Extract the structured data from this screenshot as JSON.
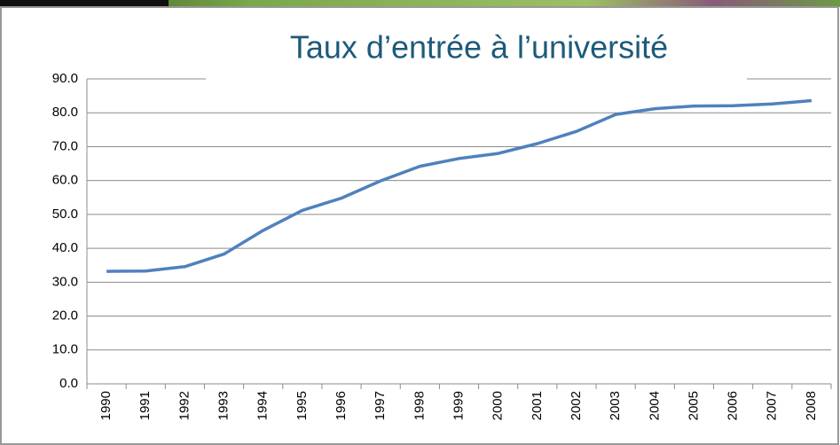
{
  "chart_data": {
    "type": "line",
    "title": "Taux d’entrée à l’université",
    "categories": [
      "1990",
      "1991",
      "1992",
      "1993",
      "1994",
      "1995",
      "1996",
      "1997",
      "1998",
      "1999",
      "2000",
      "2001",
      "2002",
      "2003",
      "2004",
      "2005",
      "2006",
      "2007",
      "2008"
    ],
    "series": [
      {
        "name": null,
        "color": "#4f81bd",
        "values": [
          33.2,
          33.3,
          34.6,
          38.3,
          45.3,
          51.2,
          54.8,
          59.9,
          64.2,
          66.5,
          68.0,
          70.9,
          74.5,
          79.5,
          81.2,
          82.0,
          82.1,
          82.6,
          83.6
        ]
      }
    ],
    "ylim": [
      0,
      90
    ],
    "yticks": [
      {
        "value": 0,
        "label": "0.0"
      },
      {
        "value": 10,
        "label": "10.0"
      },
      {
        "value": 20,
        "label": "20.0"
      },
      {
        "value": 30,
        "label": "30.0"
      },
      {
        "value": 40,
        "label": "40.0"
      },
      {
        "value": 50,
        "label": "50.0"
      },
      {
        "value": 60,
        "label": "60.0"
      },
      {
        "value": 70,
        "label": "70.0"
      },
      {
        "value": 80,
        "label": "80.0"
      },
      {
        "value": 90,
        "label": "90.0"
      }
    ],
    "grid": true
  }
}
